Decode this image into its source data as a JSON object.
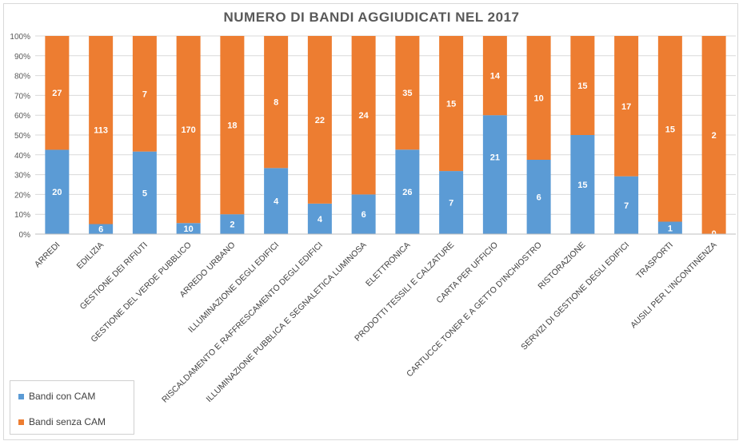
{
  "chart_data": {
    "type": "bar",
    "stacked": "percent",
    "title": "NUMERO DI BANDI AGGIUDICATI NEL 2017",
    "categories": [
      "ARREDI",
      "EDILIZIA",
      "GESTIONE DEI RIFIUTI",
      "GESTIONE DEL VERDE PUBBLICO",
      "ARREDO URBANO",
      "ILLUMINAZIONE DEGLI EDIFICI",
      "RISCALDAMENTO  E  RAFFRESCAMENTO  DEGLI  EDIFICI",
      "ILLUMINAZIONE PUBBLICA E SEGNALETICA LUMINOSA",
      "ELETTRONICA",
      "PRODOTTI TESSILI E CALZATURE",
      "CARTA PER UFFICIO",
      "CARTUCCE  TONER E A GETTO D'INCHIOSTRO",
      "RISTORAZIONE",
      "SERVIZI DI GESTIONE DEGLI EDIFICI",
      "TRASPORTI",
      "AUSILI PER L'INCONTINENZA"
    ],
    "series": [
      {
        "name": "Bandi con CAM",
        "color": "#5b9bd5",
        "values": [
          20,
          6,
          5,
          10,
          2,
          4,
          4,
          6,
          26,
          7,
          21,
          6,
          15,
          7,
          1,
          0
        ]
      },
      {
        "name": "Bandi senza CAM",
        "color": "#ed7d31",
        "values": [
          27,
          113,
          7,
          170,
          18,
          8,
          22,
          24,
          35,
          15,
          14,
          10,
          15,
          17,
          15,
          2
        ]
      }
    ],
    "yticks": [
      "0%",
      "10%",
      "20%",
      "30%",
      "40%",
      "50%",
      "60%",
      "70%",
      "80%",
      "90%",
      "100%"
    ],
    "ylim": [
      0,
      100
    ],
    "grid": true,
    "legend": "bottom-left"
  }
}
